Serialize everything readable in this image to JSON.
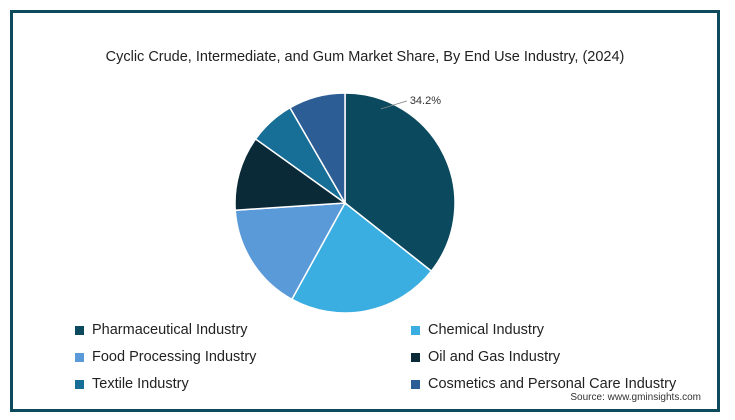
{
  "chart_data": {
    "type": "pie",
    "title": "Cyclic Crude, Intermediate, and Gum Market Share, By End Use Industry, (2024)",
    "slices": [
      {
        "label": "Pharmaceutical Industry",
        "value": 34.2,
        "color": "#0b4a5e",
        "data_label": "34.2%"
      },
      {
        "label": "Chemical Industry",
        "value": 21.5,
        "color": "#3aaee0",
        "data_label": ""
      },
      {
        "label": "Food Processing Industry",
        "value": 15.3,
        "color": "#5b9ad8",
        "data_label": ""
      },
      {
        "label": "Oil and Gas Industry",
        "value": 10.5,
        "color": "#0b2a38",
        "data_label": ""
      },
      {
        "label": "Textile Industry",
        "value": 6.5,
        "color": "#176e96",
        "data_label": ""
      },
      {
        "label": "Cosmetics and Personal Care Industry",
        "value": 8.0,
        "color": "#2c5d94",
        "data_label": ""
      }
    ],
    "legend_position": "bottom"
  },
  "source": "Source: www.gminsights.com"
}
